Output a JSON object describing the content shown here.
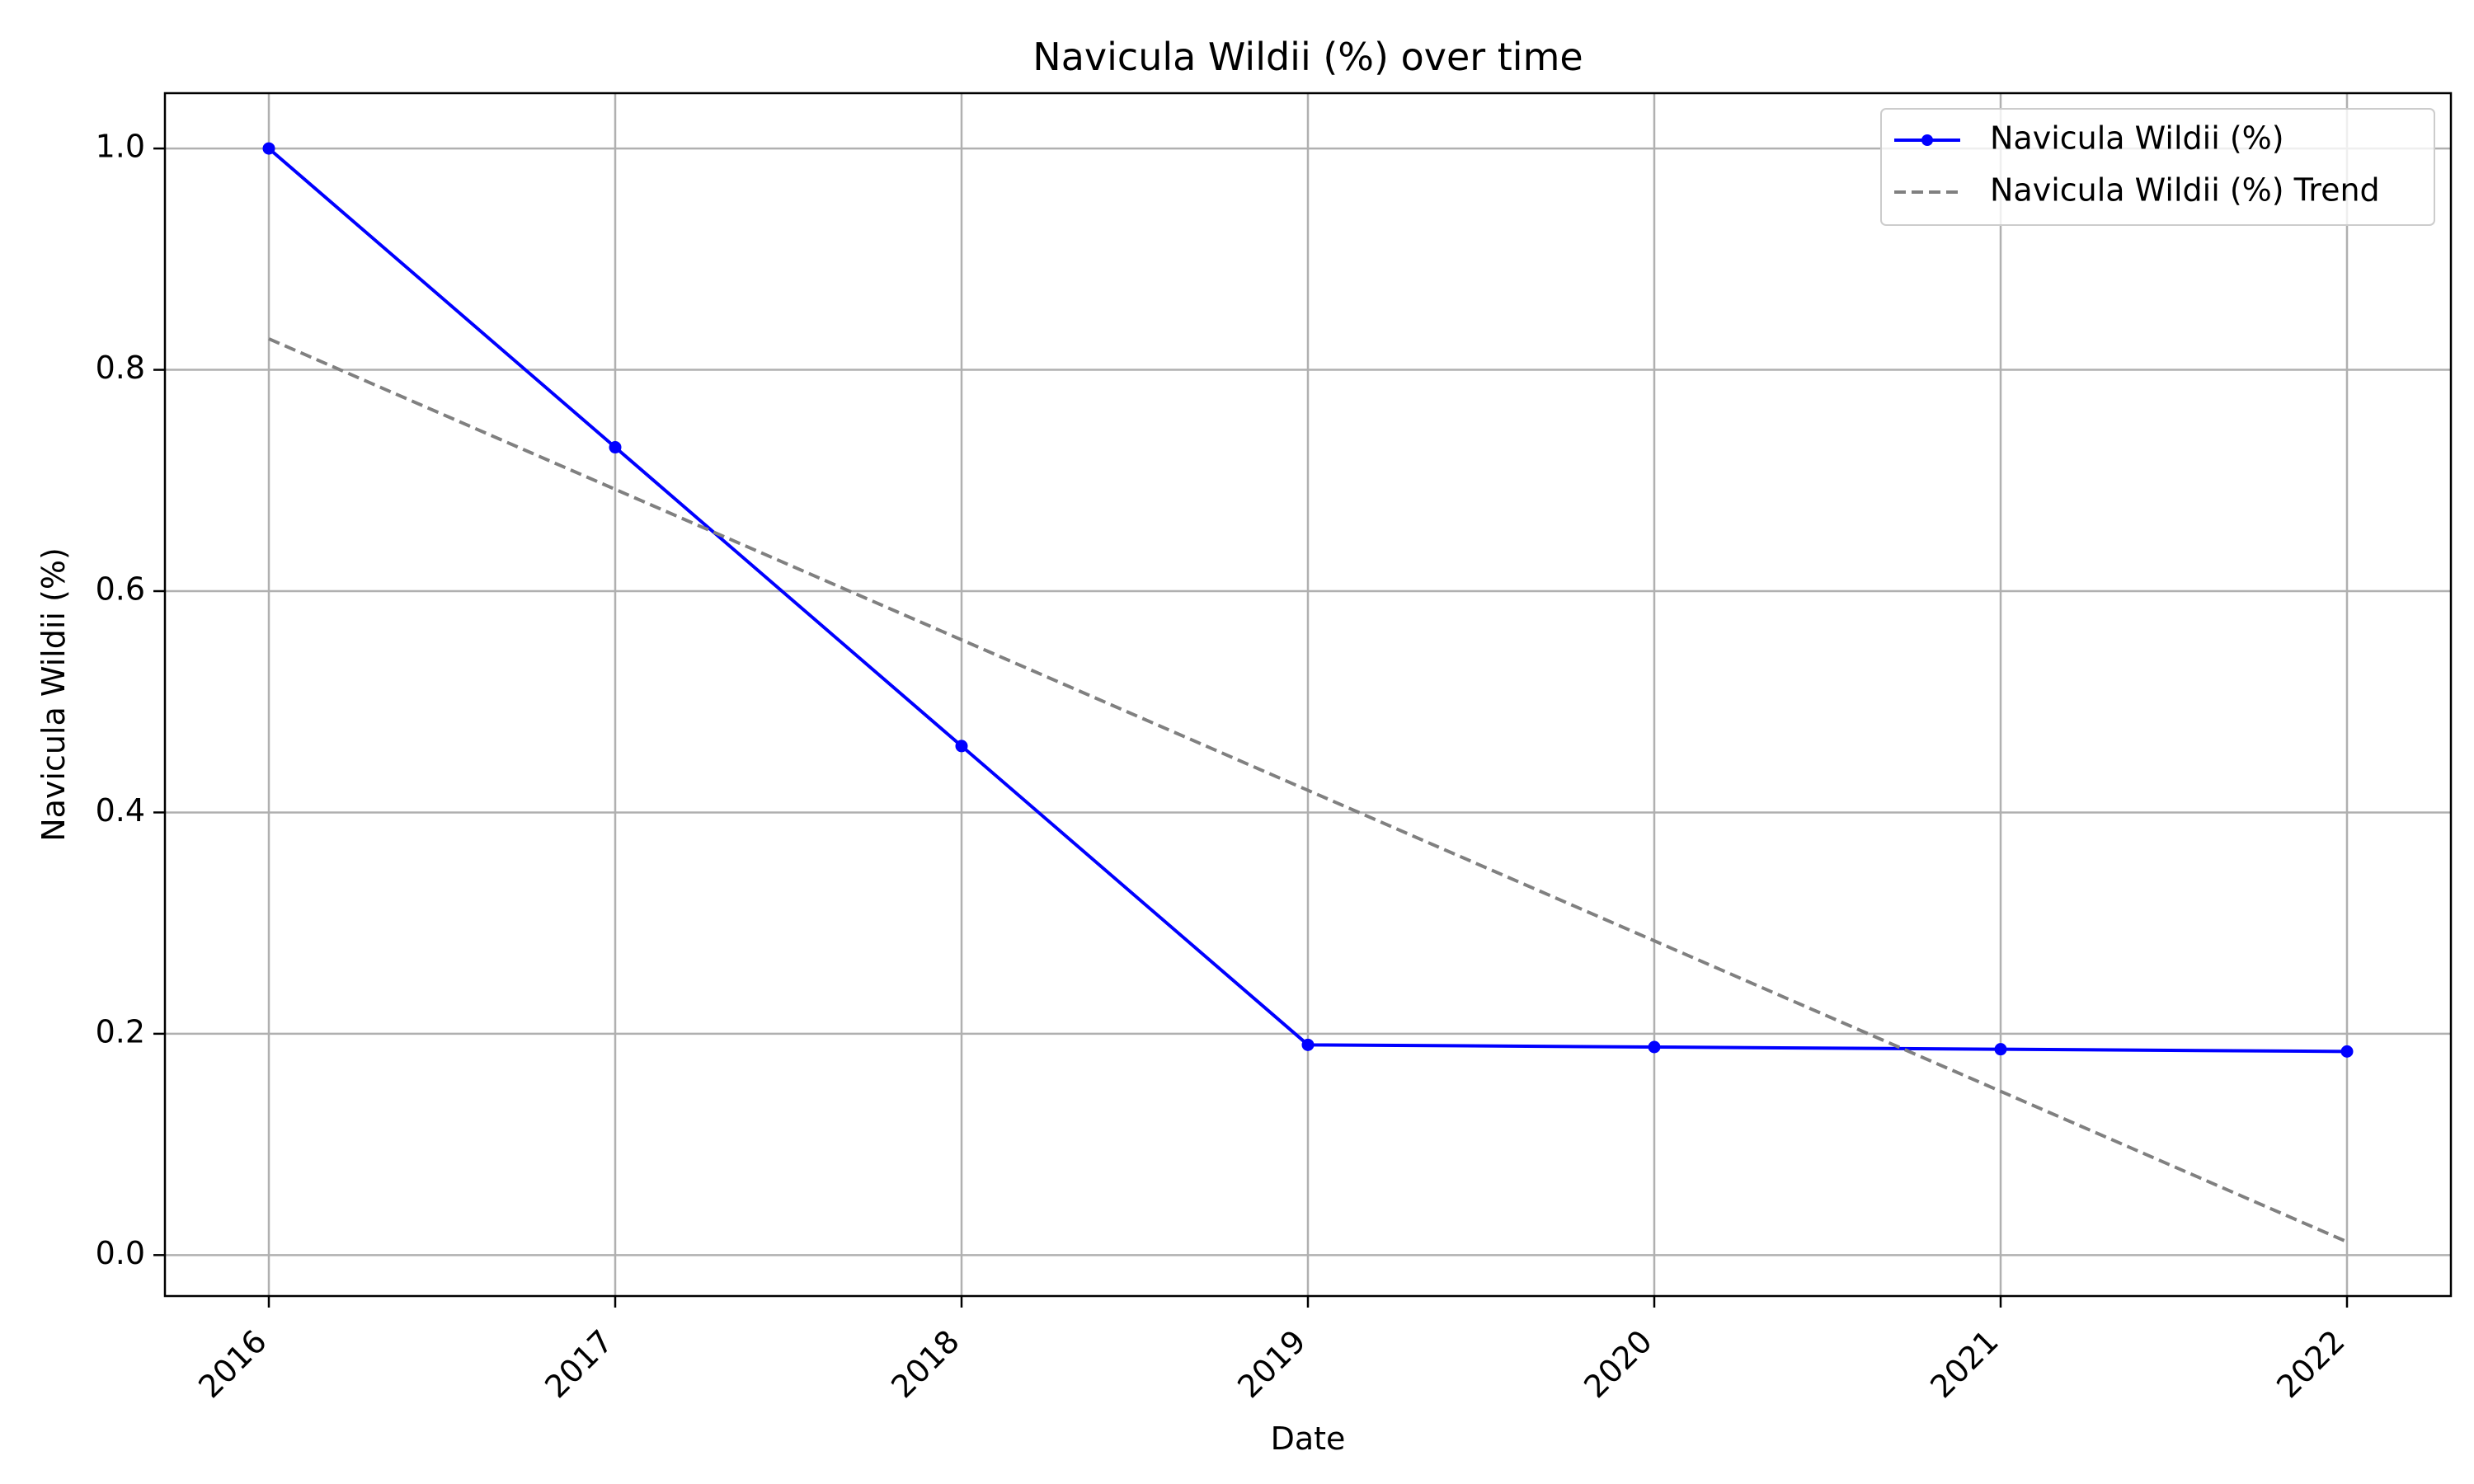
{
  "chart_data": {
    "type": "line",
    "title": "Navicula Wildii (%) over time",
    "xlabel": "Date",
    "ylabel": "Navicula Wildii (%)",
    "x": [
      "2016",
      "2017",
      "2018",
      "2019",
      "2020",
      "2021",
      "2022"
    ],
    "xlim": [
      2015.7,
      2022.3
    ],
    "ylim": [
      -0.037,
      1.05
    ],
    "yticks": [
      0.0,
      0.2,
      0.4,
      0.6,
      0.8,
      1.0
    ],
    "ytick_labels": [
      "0.0",
      "0.2",
      "0.4",
      "0.6",
      "0.8",
      "1.0"
    ],
    "grid": true,
    "legend_position": "top-right",
    "series": [
      {
        "name": "Navicula Wildii (%)",
        "style": "solid-with-markers",
        "color": "#0000ff",
        "values": [
          1.0,
          0.73,
          0.46,
          0.19,
          0.188,
          0.186,
          0.184
        ]
      },
      {
        "name": "Navicula Wildii (%) Trend",
        "style": "dashed",
        "color": "#808080",
        "values": [
          0.828,
          0.692,
          0.556,
          0.42,
          0.284,
          0.148,
          0.012
        ]
      }
    ]
  }
}
